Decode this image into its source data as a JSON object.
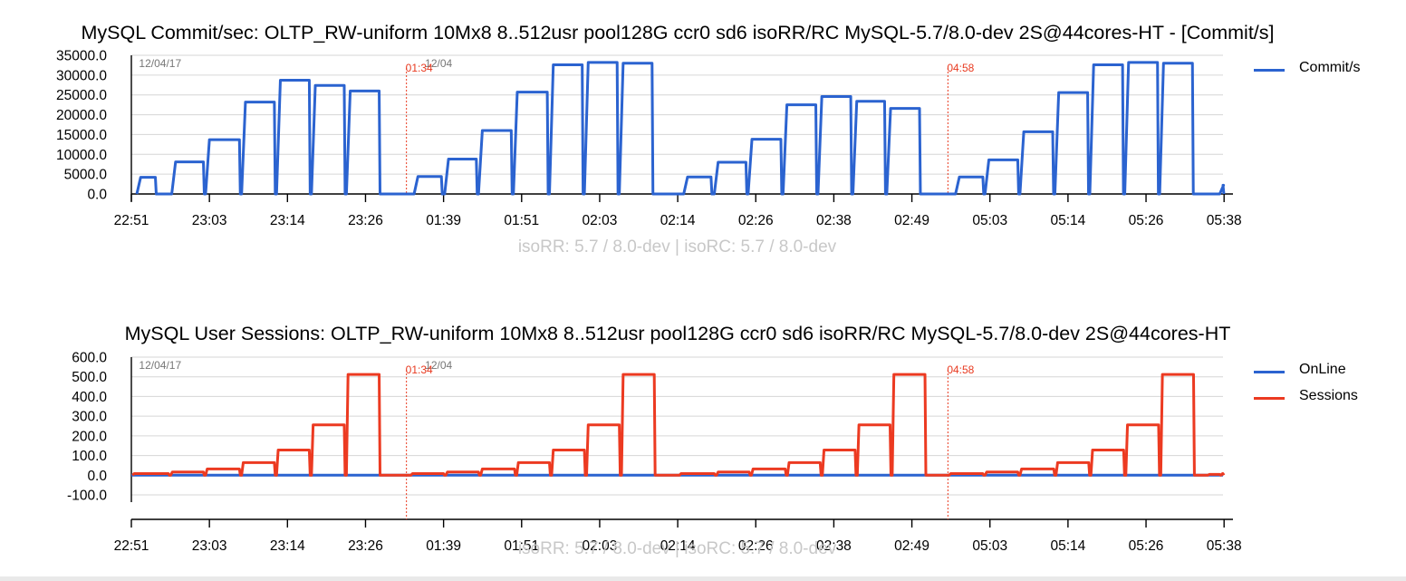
{
  "colors": {
    "commit": "#2b63d0",
    "online": "#2b63d0",
    "sessions": "#ec3a21",
    "marker": "#e8391f",
    "grid": "#d6d6d6",
    "subtitle": "#c8c8c8"
  },
  "chart_data": [
    {
      "type": "line",
      "title": "MySQL Commit/sec: OLTP_RW-uniform 10Mx8 8..512usr pool128G ccr0 sd6 isoRR/RC MySQL-5.7/8.0-dev 2S@44cores-HT - [Commit/s]",
      "subtitle": "isoRR: 5.7 / 8.0-dev | isoRC: 5.7 / 8.0-dev",
      "ylim": [
        0,
        35000
      ],
      "y_ticks": [
        "35000.0",
        "30000.0",
        "25000.0",
        "20000.0",
        "15000.0",
        "10000.0",
        "5000.0",
        "0.0"
      ],
      "x_ticks": [
        "22:51",
        "23:03",
        "23:14",
        "23:26",
        "01:39",
        "01:51",
        "02:03",
        "02:14",
        "02:26",
        "02:38",
        "02:49",
        "05:03",
        "05:14",
        "05:26",
        "05:38"
      ],
      "x_range": [
        0,
        100
      ],
      "date_labels": [
        {
          "text": "12/04/17",
          "x": 0.7
        },
        {
          "text": "12/04",
          "x": 26.9
        }
      ],
      "markers": [
        {
          "text": "01:34",
          "x": 25.2
        },
        {
          "text": "04:58",
          "x": 74.8
        }
      ],
      "series": [
        {
          "name": "Commit/s",
          "segments": [
            [
              0.5,
              2.2,
              4200
            ],
            [
              3.7,
              6.6,
              8100
            ],
            [
              6.8,
              9.9,
              13700
            ],
            [
              10.1,
              13.1,
              23200
            ],
            [
              13.3,
              16.3,
              28700
            ],
            [
              16.5,
              19.5,
              27400
            ],
            [
              19.7,
              22.7,
              26000
            ],
            [
              25.9,
              28.4,
              4400
            ],
            [
              28.7,
              31.6,
              8800
            ],
            [
              31.8,
              34.8,
              16000
            ],
            [
              35.0,
              38.1,
              25700
            ],
            [
              38.3,
              41.3,
              32600
            ],
            [
              41.5,
              44.5,
              33200
            ],
            [
              44.7,
              47.7,
              33000
            ],
            [
              50.6,
              53.1,
              4300
            ],
            [
              53.4,
              56.3,
              8000
            ],
            [
              56.5,
              59.5,
              13800
            ],
            [
              59.7,
              62.7,
              22500
            ],
            [
              62.9,
              65.9,
              24600
            ],
            [
              66.1,
              69.0,
              23400
            ],
            [
              69.2,
              72.2,
              21600
            ],
            [
              75.5,
              78.0,
              4300
            ],
            [
              78.2,
              81.2,
              8600
            ],
            [
              81.4,
              84.4,
              15700
            ],
            [
              84.6,
              87.6,
              25600
            ],
            [
              87.8,
              90.8,
              32600
            ],
            [
              91.0,
              94.0,
              33200
            ],
            [
              94.2,
              97.2,
              33000
            ],
            [
              99.7,
              100.0,
              2200
            ]
          ]
        }
      ]
    },
    {
      "type": "line",
      "title": "MySQL User Sessions: OLTP_RW-uniform 10Mx8 8..512usr pool128G ccr0 sd6 isoRR/RC MySQL-5.7/8.0-dev 2S@44cores-HT",
      "subtitle": "isoRR: 5.7 / 8.0-dev | isoRC: 5.7 / 8.0-dev",
      "ylim": [
        -100,
        600
      ],
      "y_ticks": [
        "600.0",
        "500.0",
        "400.0",
        "300.0",
        "200.0",
        "100.0",
        "0.0",
        "-100.0"
      ],
      "x_ticks": [
        "22:51",
        "23:03",
        "23:14",
        "23:26",
        "01:39",
        "01:51",
        "02:03",
        "02:14",
        "02:26",
        "02:38",
        "02:49",
        "05:03",
        "05:14",
        "05:26",
        "05:38"
      ],
      "x_range": [
        0,
        100
      ],
      "date_labels": [
        {
          "text": "12/04/17",
          "x": 0.7
        },
        {
          "text": "12/04",
          "x": 26.9
        }
      ],
      "markers": [
        {
          "text": "01:34",
          "x": 25.2
        },
        {
          "text": "04:58",
          "x": 74.8
        }
      ],
      "series": [
        {
          "name": "OnLine",
          "values": [
            0
          ]
        },
        {
          "name": "Sessions",
          "segments": [
            [
              0.1,
              3.4,
              8
            ],
            [
              3.6,
              6.6,
              16
            ],
            [
              6.8,
              9.9,
              32
            ],
            [
              10.1,
              13.1,
              64
            ],
            [
              13.3,
              16.3,
              128
            ],
            [
              16.5,
              19.5,
              256
            ],
            [
              19.7,
              22.7,
              512
            ],
            [
              25.6,
              28.6,
              8
            ],
            [
              28.8,
              31.8,
              16
            ],
            [
              32.0,
              35.1,
              32
            ],
            [
              35.3,
              38.3,
              64
            ],
            [
              38.5,
              41.5,
              128
            ],
            [
              41.7,
              44.7,
              256
            ],
            [
              44.9,
              47.9,
              512
            ],
            [
              50.2,
              53.4,
              8
            ],
            [
              53.6,
              56.6,
              16
            ],
            [
              56.8,
              59.9,
              32
            ],
            [
              60.1,
              63.1,
              64
            ],
            [
              63.3,
              66.3,
              128
            ],
            [
              66.5,
              69.5,
              256
            ],
            [
              69.7,
              72.7,
              512
            ],
            [
              74.9,
              78.0,
              8
            ],
            [
              78.2,
              81.2,
              16
            ],
            [
              81.4,
              84.5,
              32
            ],
            [
              84.7,
              87.7,
              64
            ],
            [
              87.9,
              90.9,
              128
            ],
            [
              91.1,
              94.1,
              256
            ],
            [
              94.3,
              97.3,
              512
            ],
            [
              98.6,
              99.7,
              4
            ],
            [
              99.8,
              100.0,
              8
            ]
          ]
        }
      ]
    }
  ]
}
